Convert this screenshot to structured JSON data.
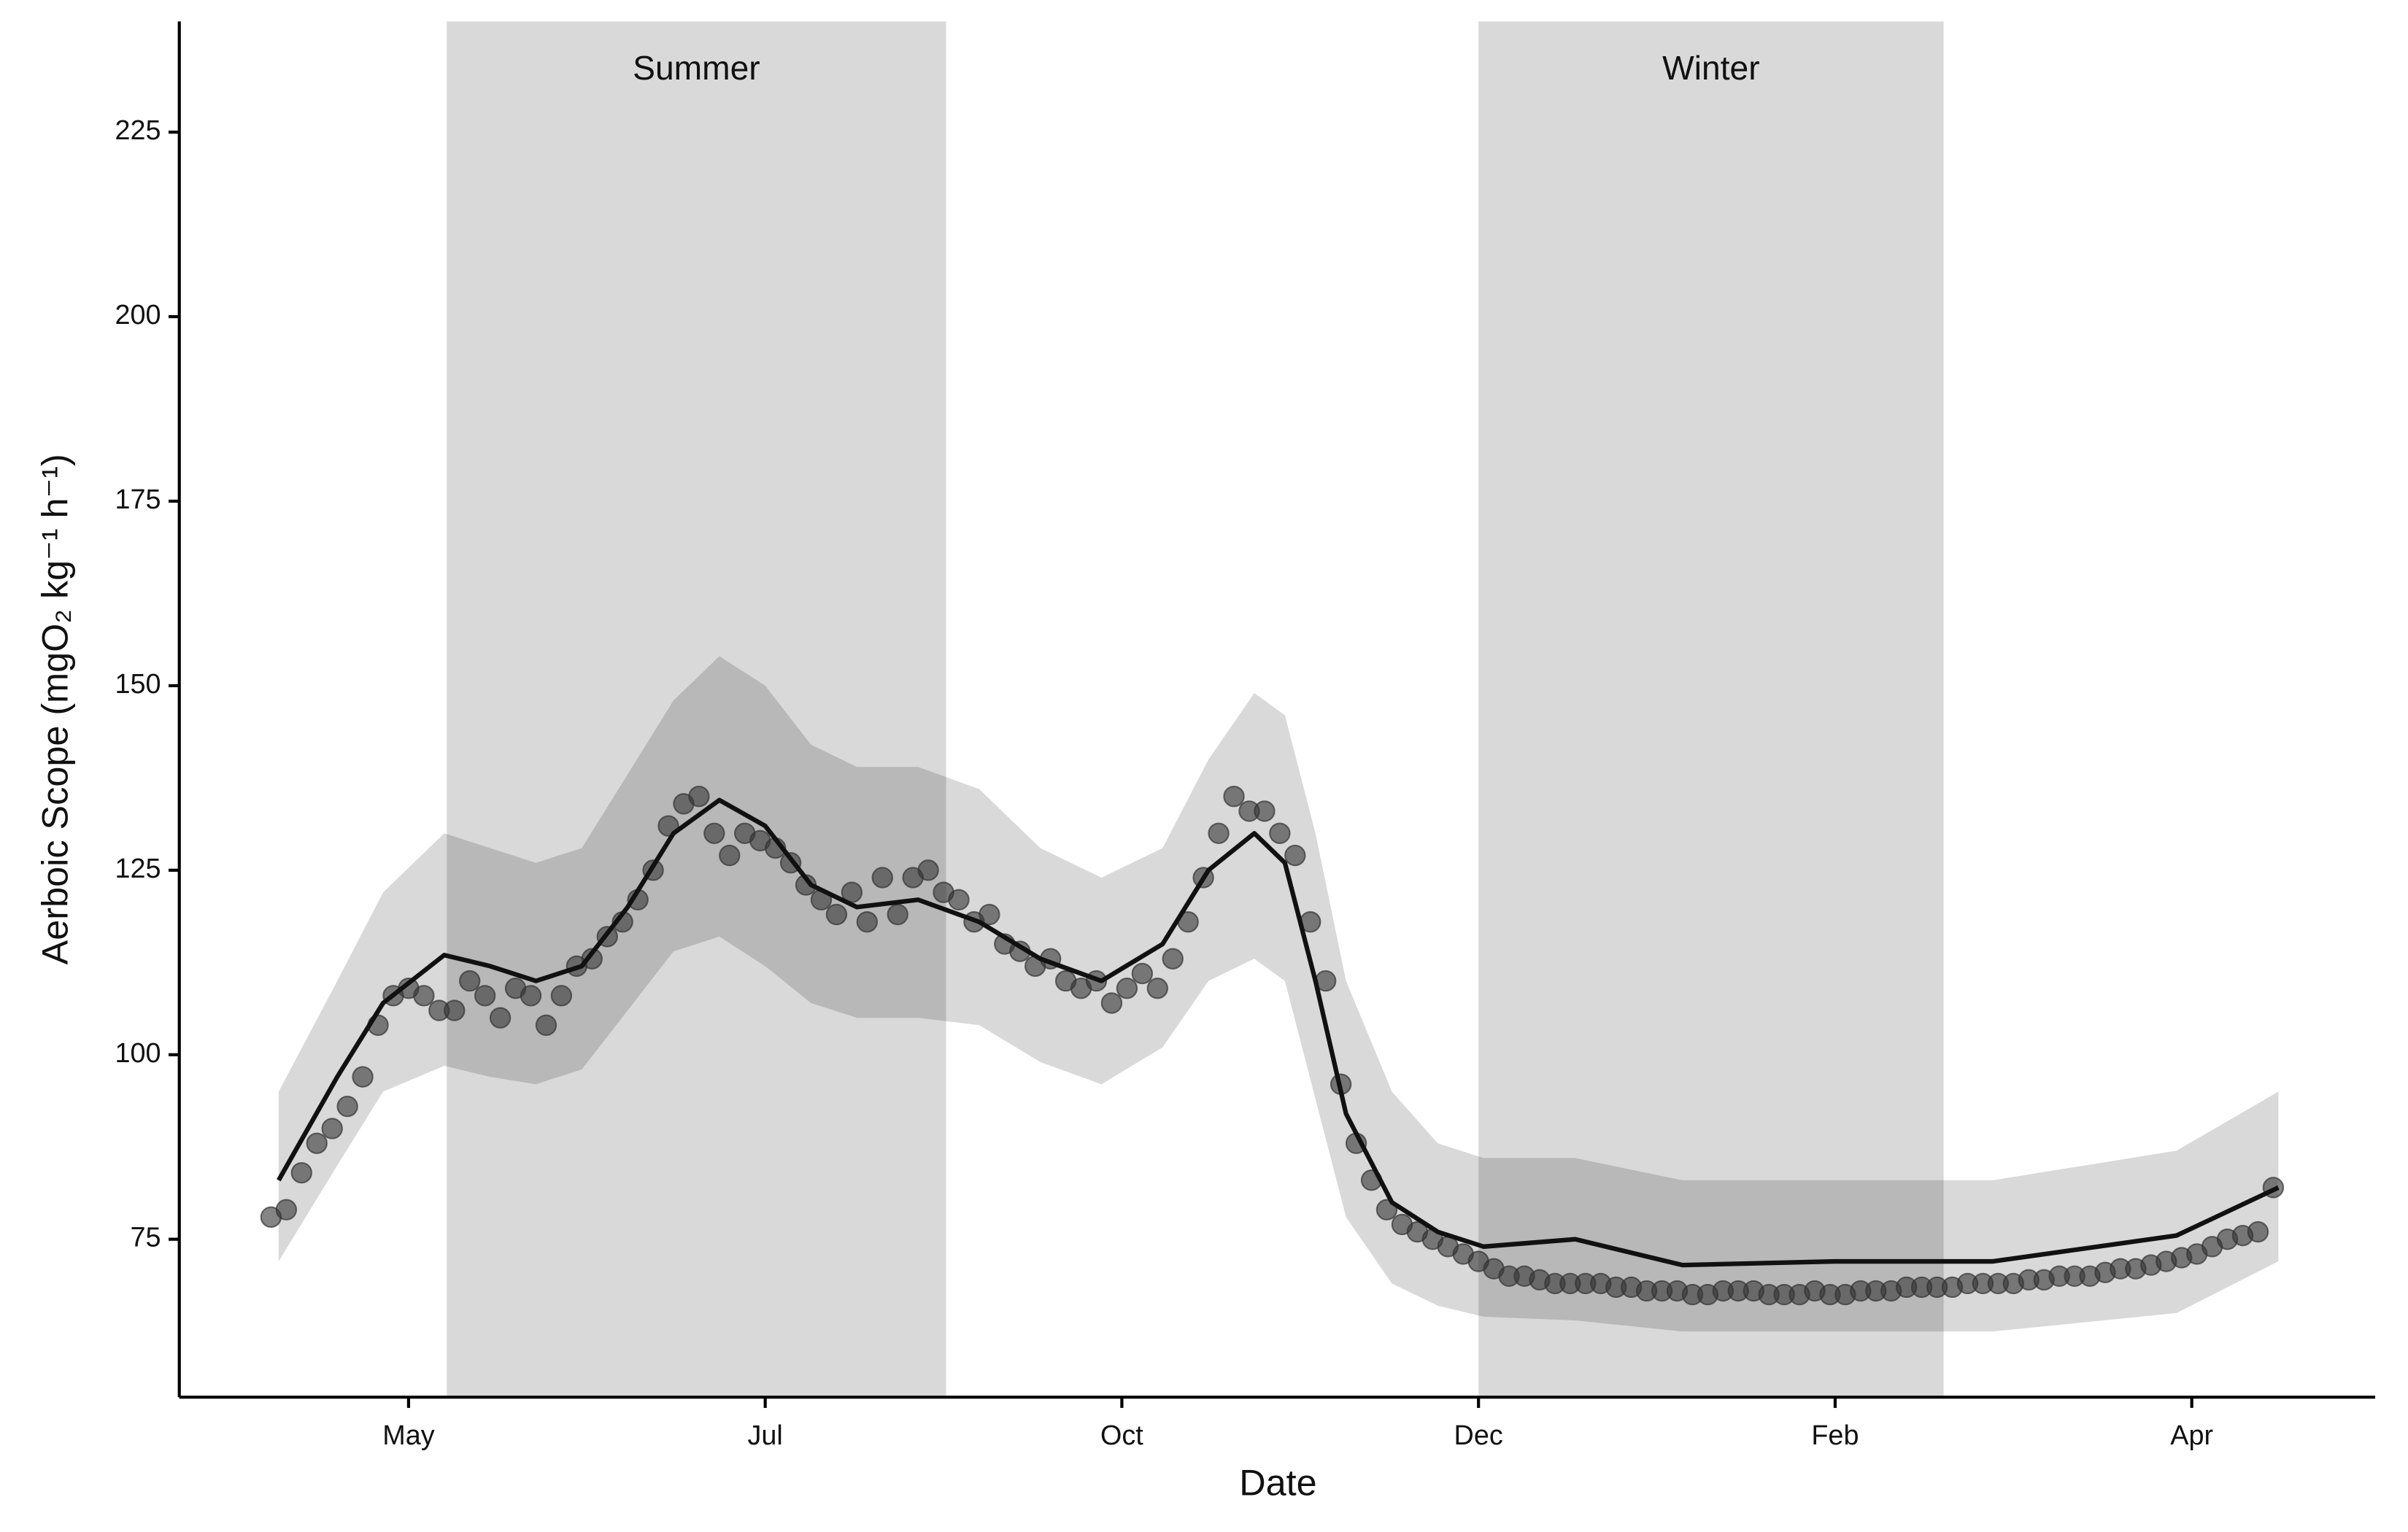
{
  "chart_data": {
    "type": "scatter",
    "x_label": "Date",
    "y_label": "Aerboic Scope (mgO₂ kg⁻¹ h⁻¹)",
    "xlim": [
      -15,
      416
    ],
    "ylim": [
      53.6,
      240
    ],
    "xticks": [
      {
        "value": 30,
        "label": "May"
      },
      {
        "value": 100,
        "label": "Jul"
      },
      {
        "value": 170,
        "label": "Oct"
      },
      {
        "value": 240,
        "label": "Dec"
      },
      {
        "value": 310,
        "label": "Feb"
      },
      {
        "value": 380,
        "label": "Apr"
      }
    ],
    "yticks": [
      75,
      100,
      125,
      150,
      175,
      200,
      225
    ],
    "regions": [
      {
        "label": "Summer",
        "xmin": 37.5,
        "xmax": 135.5
      },
      {
        "label": "Winter",
        "xmin": 240,
        "xmax": 331.3
      }
    ],
    "region_color": "#d9d9d9",
    "band_color": "#000000",
    "line_color": "#111111",
    "point_color": "#333333",
    "x": [
      3,
      6,
      9,
      12,
      15,
      18,
      21,
      24,
      27,
      30,
      33,
      36,
      39,
      42,
      45,
      48,
      51,
      54,
      57,
      60,
      63,
      66,
      69,
      72,
      75,
      78,
      81,
      84,
      87,
      90,
      93,
      96,
      99,
      102,
      105,
      108,
      111,
      114,
      117,
      120,
      123,
      126,
      129,
      132,
      135,
      138,
      141,
      144,
      147,
      150,
      153,
      156,
      159,
      162,
      165,
      168,
      171,
      174,
      177,
      180,
      183,
      186,
      189,
      192,
      195,
      198,
      201,
      204,
      207,
      210,
      213,
      216,
      219,
      222,
      225,
      228,
      231,
      234,
      237,
      240,
      243,
      246,
      249,
      252,
      255,
      258,
      261,
      264,
      267,
      270,
      273,
      276,
      279,
      282,
      285,
      288,
      291,
      294,
      297,
      300,
      303,
      306,
      309,
      312,
      315,
      318,
      321,
      324,
      327,
      330,
      333,
      336,
      339,
      342,
      345,
      348,
      351,
      354,
      357,
      360,
      363,
      366,
      369,
      372,
      375,
      378,
      381,
      384,
      387,
      390,
      393,
      396
    ],
    "values": [
      78,
      79,
      84,
      88,
      90,
      93,
      97,
      104,
      108,
      109,
      108,
      106,
      106,
      110,
      108,
      105,
      109,
      108,
      104,
      108,
      112,
      113,
      116,
      118,
      121,
      125,
      131,
      134,
      135,
      130,
      127,
      130,
      129,
      128,
      126,
      123,
      121,
      119,
      122,
      118,
      124,
      119,
      124,
      125,
      122,
      121,
      118,
      119,
      115,
      114,
      112,
      113,
      110,
      109,
      110,
      107,
      109,
      111,
      109,
      113,
      118,
      124,
      130,
      135,
      133,
      133,
      130,
      127,
      118,
      110,
      96,
      88,
      83,
      79,
      77,
      76,
      75,
      74,
      73,
      72,
      71,
      70,
      70,
      69.5,
      69,
      69,
      69,
      69,
      68.5,
      68.5,
      68,
      68,
      68,
      67.5,
      67.5,
      68,
      68,
      68,
      67.5,
      67.5,
      67.5,
      68,
      67.5,
      67.5,
      68,
      68,
      68,
      68.5,
      68.5,
      68.5,
      68.5,
      69,
      69,
      69,
      69,
      69.5,
      69.5,
      70,
      70,
      70,
      70.5,
      71,
      71,
      71.5,
      72,
      72.5,
      73,
      74,
      75,
      75.5,
      76,
      82
    ],
    "fit": {
      "x": [
        4.5,
        16,
        25,
        37,
        46,
        55,
        64,
        73,
        82,
        91,
        100,
        109,
        118,
        130,
        142,
        154,
        166,
        178,
        187,
        196,
        202,
        208,
        214,
        223,
        232,
        241,
        259,
        280,
        310,
        341,
        377,
        397
      ],
      "values": [
        83,
        97,
        107,
        113.5,
        112,
        110,
        112,
        120,
        130,
        134.5,
        131,
        123,
        120,
        121,
        118,
        113,
        110,
        115,
        125,
        130,
        126,
        110,
        92,
        80,
        76,
        74,
        75,
        71.5,
        72,
        72,
        75.5,
        82
      ]
    },
    "ci": {
      "x": [
        4.5,
        16,
        25,
        37,
        46,
        55,
        64,
        73,
        82,
        91,
        100,
        109,
        118,
        130,
        142,
        154,
        166,
        178,
        187,
        196,
        202,
        208,
        214,
        223,
        232,
        241,
        259,
        280,
        310,
        341,
        377,
        397
      ],
      "lower": [
        72,
        85,
        95,
        98.5,
        97,
        96,
        98,
        106,
        114,
        116,
        112,
        107,
        105,
        105,
        104,
        99,
        96,
        101,
        110,
        113,
        110,
        94,
        78,
        69,
        66,
        64.5,
        64,
        62.5,
        62.5,
        62.5,
        65,
        72
      ],
      "upper": [
        95,
        110,
        122,
        130,
        128,
        126,
        128,
        138,
        148,
        154,
        150,
        142,
        139,
        139,
        136,
        128,
        124,
        128,
        140,
        149,
        146,
        130,
        110,
        95,
        88,
        86,
        86,
        83,
        83,
        83,
        87,
        95
      ]
    }
  }
}
